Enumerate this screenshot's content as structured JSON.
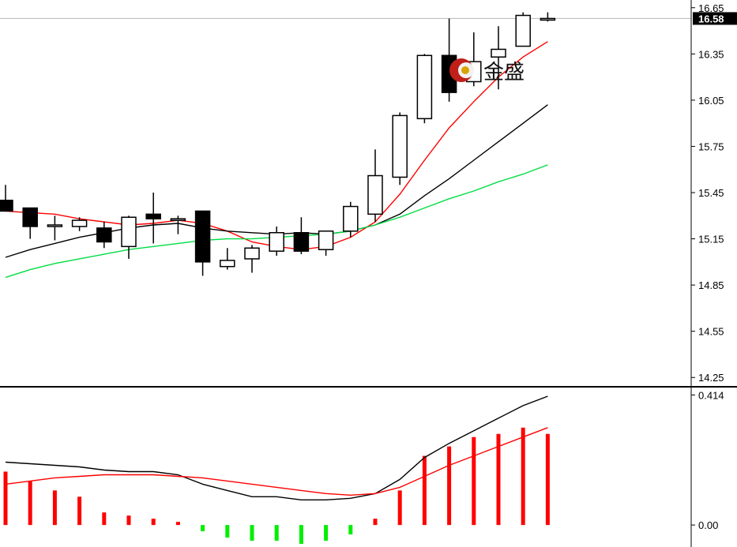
{
  "logo": {
    "text": "金盛"
  },
  "chart_data": [
    {
      "type": "candlestick",
      "panel": "price",
      "ylim": [
        14.2,
        16.7
      ],
      "y_ticks": [
        "16.65",
        "16.35",
        "16.05",
        "15.75",
        "15.45",
        "15.15",
        "14.85",
        "14.55",
        "14.25"
      ],
      "last_price": "16.58",
      "candles": [
        {
          "o": 15.4,
          "h": 15.5,
          "l": 15.33,
          "c": 15.33
        },
        {
          "o": 15.35,
          "h": 15.35,
          "l": 15.15,
          "c": 15.23
        },
        {
          "o": 15.24,
          "h": 15.3,
          "l": 15.14,
          "c": 15.24
        },
        {
          "o": 15.23,
          "h": 15.29,
          "l": 15.2,
          "c": 15.27
        },
        {
          "o": 15.22,
          "h": 15.26,
          "l": 15.09,
          "c": 15.13
        },
        {
          "o": 15.1,
          "h": 15.3,
          "l": 15.02,
          "c": 15.29
        },
        {
          "o": 15.31,
          "h": 15.45,
          "l": 15.12,
          "c": 15.28
        },
        {
          "o": 15.28,
          "h": 15.3,
          "l": 15.18,
          "c": 15.28
        },
        {
          "o": 15.33,
          "h": 15.33,
          "l": 14.91,
          "c": 15.0
        },
        {
          "o": 14.97,
          "h": 15.09,
          "l": 14.95,
          "c": 15.01
        },
        {
          "o": 15.02,
          "h": 15.11,
          "l": 14.93,
          "c": 15.09
        },
        {
          "o": 15.07,
          "h": 15.23,
          "l": 15.04,
          "c": 15.19
        },
        {
          "o": 15.19,
          "h": 15.29,
          "l": 15.05,
          "c": 15.07
        },
        {
          "o": 15.08,
          "h": 15.2,
          "l": 15.04,
          "c": 15.2
        },
        {
          "o": 15.2,
          "h": 15.39,
          "l": 15.16,
          "c": 15.36
        },
        {
          "o": 15.31,
          "h": 15.73,
          "l": 15.26,
          "c": 15.56
        },
        {
          "o": 15.55,
          "h": 15.97,
          "l": 15.5,
          "c": 15.95
        },
        {
          "o": 15.93,
          "h": 16.35,
          "l": 15.9,
          "c": 16.34
        },
        {
          "o": 16.34,
          "h": 16.58,
          "l": 16.04,
          "c": 16.1
        },
        {
          "o": 16.17,
          "h": 16.49,
          "l": 16.14,
          "c": 16.3
        },
        {
          "o": 16.33,
          "h": 16.53,
          "l": 16.12,
          "c": 16.38
        },
        {
          "o": 16.4,
          "h": 16.62,
          "l": 16.4,
          "c": 16.6
        },
        {
          "o": 16.58,
          "h": 16.62,
          "l": 16.56,
          "c": 16.58
        }
      ],
      "series": [
        {
          "color": "#ff0000",
          "values": [
            15.33,
            15.32,
            15.31,
            15.28,
            15.26,
            15.24,
            15.25,
            15.27,
            15.25,
            15.2,
            15.13,
            15.1,
            15.08,
            15.1,
            15.16,
            15.26,
            15.44,
            15.66,
            15.87,
            16.04,
            16.2,
            16.33,
            16.43
          ]
        },
        {
          "color": "#000000",
          "values": [
            15.03,
            15.08,
            15.12,
            15.16,
            15.19,
            15.22,
            15.24,
            15.25,
            15.22,
            15.2,
            15.19,
            15.18,
            15.19,
            15.18,
            15.2,
            15.24,
            15.31,
            15.43,
            15.54,
            15.66,
            15.78,
            15.9,
            16.02
          ]
        },
        {
          "color": "#00dd44",
          "values": [
            14.9,
            14.95,
            14.99,
            15.02,
            15.05,
            15.08,
            15.1,
            15.12,
            15.14,
            15.15,
            15.15,
            15.16,
            15.17,
            15.18,
            15.2,
            15.24,
            15.29,
            15.35,
            15.41,
            15.46,
            15.52,
            15.57,
            15.63
          ]
        }
      ]
    },
    {
      "type": "bar",
      "panel": "indicator",
      "ylim": [
        -0.07,
        0.43
      ],
      "y_ticks": [
        "0.414",
        "0.00"
      ],
      "colors": {
        "positive": "#ff0000",
        "negative": "#00ee00"
      },
      "values": [
        0.17,
        0.14,
        0.11,
        0.09,
        0.04,
        0.03,
        0.02,
        0.01,
        -0.02,
        -0.04,
        -0.05,
        -0.05,
        -0.06,
        -0.05,
        -0.03,
        0.02,
        0.11,
        0.22,
        0.25,
        0.28,
        0.29,
        0.31,
        0.29
      ],
      "series": [
        {
          "color": "#000000",
          "values": [
            0.2,
            0.195,
            0.19,
            0.185,
            0.175,
            0.17,
            0.17,
            0.16,
            0.13,
            0.11,
            0.09,
            0.09,
            0.08,
            0.08,
            0.085,
            0.1,
            0.145,
            0.215,
            0.26,
            0.3,
            0.34,
            0.38,
            0.41
          ]
        },
        {
          "color": "#ff0000",
          "values": [
            0.13,
            0.14,
            0.15,
            0.155,
            0.16,
            0.16,
            0.16,
            0.155,
            0.15,
            0.14,
            0.13,
            0.12,
            0.11,
            0.1,
            0.095,
            0.1,
            0.12,
            0.155,
            0.19,
            0.22,
            0.25,
            0.28,
            0.31
          ]
        }
      ]
    }
  ]
}
